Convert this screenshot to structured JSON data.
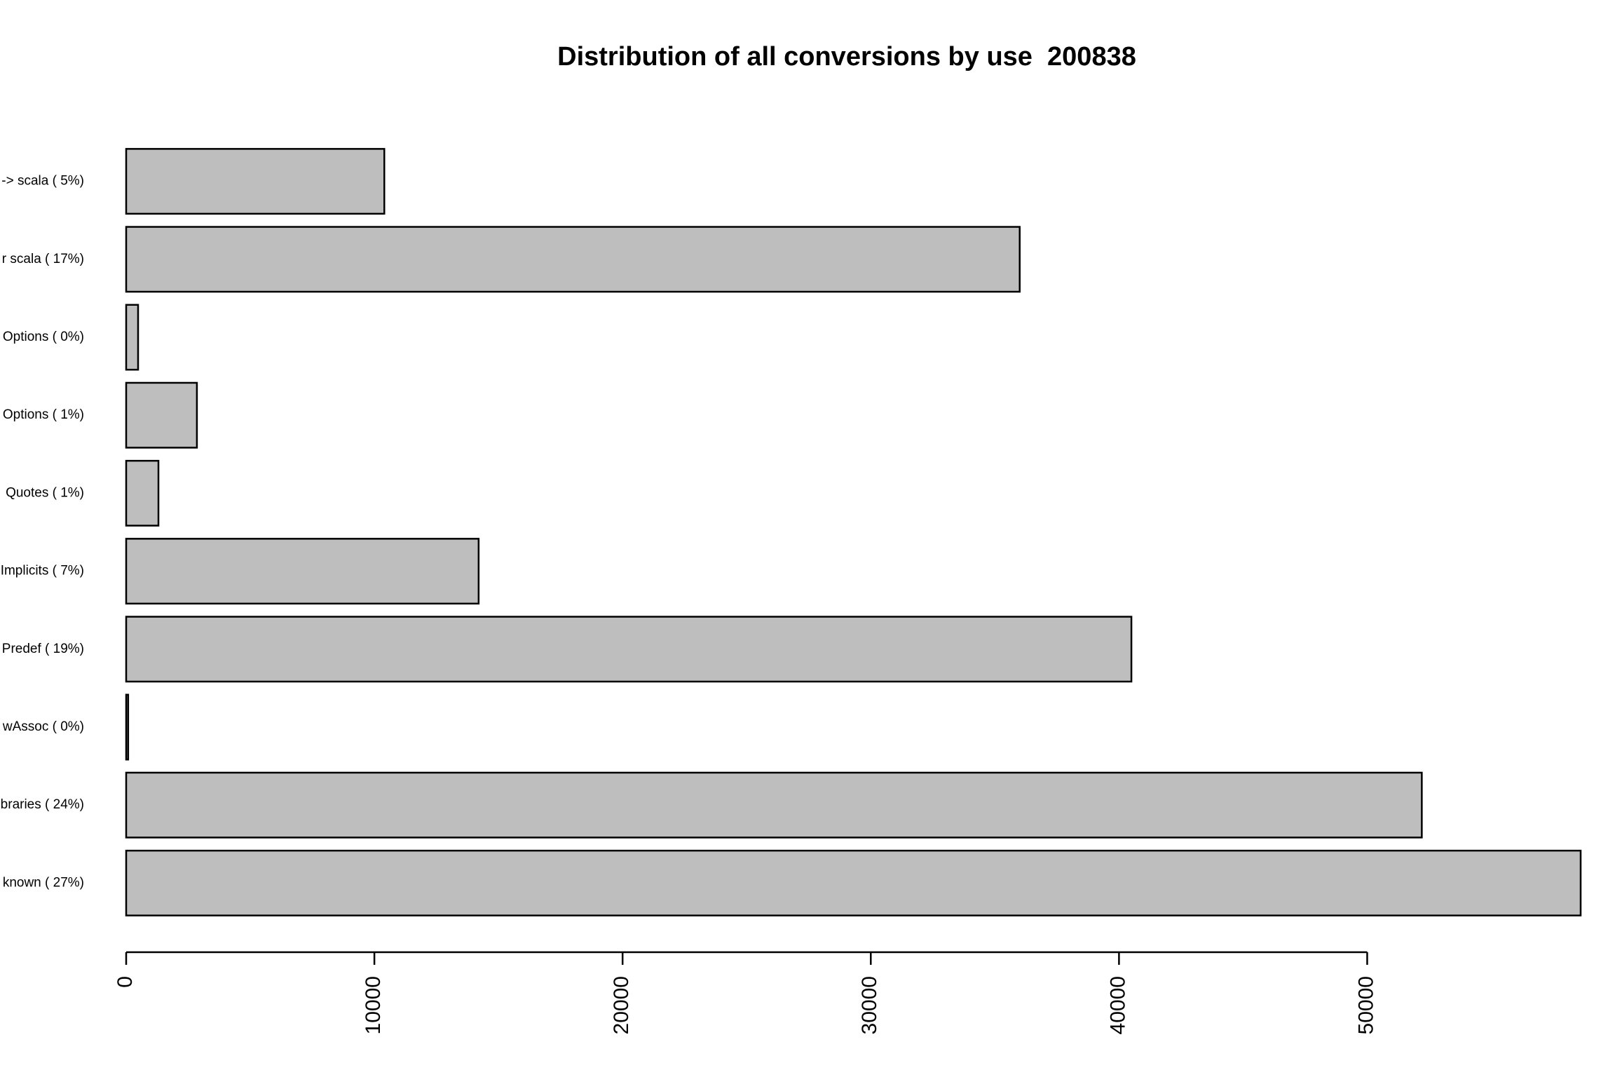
{
  "chart_data": {
    "type": "bar",
    "orientation": "horizontal",
    "title": "Distribution of all conversions by use  200838",
    "xlabel": "",
    "ylabel": "",
    "categories": [
      "known ( 27%)",
      "braries ( 24%)",
      "wAssoc ( 0%)",
      "Predef ( 19%)",
      "Implicits ( 7%)",
      "Quotes ( 1%)",
      "Options ( 1%)",
      "Options ( 0%)",
      "r scala ( 17%)",
      "-> scala ( 5%)"
    ],
    "values": [
      58600,
      52200,
      80,
      40500,
      14200,
      1300,
      2850,
      480,
      36000,
      10400
    ],
    "xlim": [
      0,
      58600
    ],
    "xticks": [
      0,
      10000,
      20000,
      30000,
      40000,
      50000
    ],
    "xtick_labels": [
      "0",
      "10000",
      "20000",
      "30000",
      "40000",
      "50000"
    ],
    "grid": false,
    "legend": "none",
    "bar_color": "#bebebe",
    "border_color": "#000000"
  }
}
